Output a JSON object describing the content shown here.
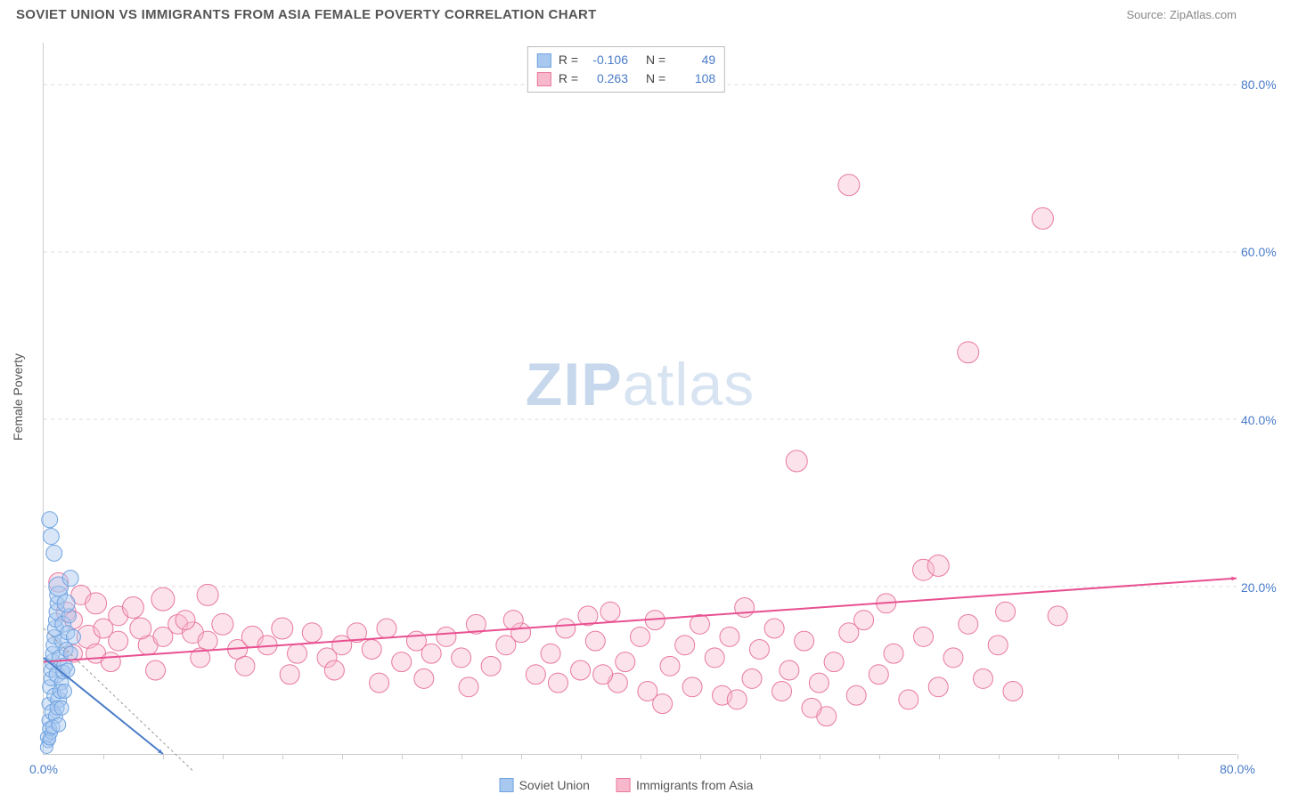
{
  "header": {
    "title": "SOVIET UNION VS IMMIGRANTS FROM ASIA FEMALE POVERTY CORRELATION CHART",
    "source": "Source: ZipAtlas.com"
  },
  "ylabel": "Female Poverty",
  "watermark": {
    "bold": "ZIP",
    "light": "atlas"
  },
  "chart": {
    "type": "scatter",
    "xlim": [
      0,
      80
    ],
    "ylim": [
      0,
      85
    ],
    "yticks": [
      {
        "v": 20,
        "label": "20.0%"
      },
      {
        "v": 40,
        "label": "40.0%"
      },
      {
        "v": 60,
        "label": "60.0%"
      },
      {
        "v": 80,
        "label": "80.0%"
      }
    ],
    "xticks_minor": [
      4,
      8,
      12,
      16,
      20,
      24,
      28,
      32,
      36,
      40,
      44,
      48,
      52,
      56,
      60,
      64,
      68,
      72,
      76,
      80
    ],
    "xtick_labels": [
      {
        "v": 0,
        "label": "0.0%"
      },
      {
        "v": 80,
        "label": "80.0%"
      }
    ],
    "background_color": "#ffffff",
    "grid_color": "#dddddd",
    "axis_color": "#cccccc",
    "tick_label_color": "#4a7cc9",
    "marker_radius_base": 9,
    "line_width": 2
  },
  "series": {
    "soviet": {
      "label": "Soviet Union",
      "fill": "#a8c8f0",
      "fill_opacity": 0.45,
      "stroke": "#6fa3e0",
      "trend_color": "#4a7cc9",
      "trend": {
        "x1": 0,
        "y1": 11.5,
        "x2": 8,
        "y2": 0
      },
      "R": "-0.106",
      "N": "49",
      "points": [
        [
          0.2,
          2.0,
          7
        ],
        [
          0.3,
          4.0,
          7
        ],
        [
          0.3,
          6.0,
          7
        ],
        [
          0.4,
          8.0,
          8
        ],
        [
          0.5,
          9.0,
          8
        ],
        [
          0.5,
          10.0,
          8
        ],
        [
          0.6,
          11.0,
          9
        ],
        [
          0.6,
          12.0,
          8
        ],
        [
          0.7,
          13.0,
          9
        ],
        [
          0.7,
          14.0,
          8
        ],
        [
          0.8,
          15.0,
          9
        ],
        [
          0.8,
          16.0,
          8
        ],
        [
          0.9,
          17.0,
          9
        ],
        [
          0.9,
          18.0,
          8
        ],
        [
          1.0,
          19.0,
          10
        ],
        [
          1.0,
          20.0,
          11
        ],
        [
          0.4,
          3.0,
          8
        ],
        [
          0.6,
          5.0,
          9
        ],
        [
          0.7,
          7.0,
          8
        ],
        [
          0.9,
          9.5,
          9
        ],
        [
          1.1,
          11.5,
          9
        ],
        [
          1.2,
          13.5,
          8
        ],
        [
          1.3,
          15.5,
          9
        ],
        [
          0.3,
          1.5,
          7
        ],
        [
          0.5,
          2.5,
          7
        ],
        [
          0.8,
          4.5,
          8
        ],
        [
          1.0,
          6.5,
          9
        ],
        [
          1.2,
          8.5,
          8
        ],
        [
          1.4,
          10.5,
          9
        ],
        [
          1.5,
          12.5,
          8
        ],
        [
          1.6,
          14.5,
          8
        ],
        [
          1.7,
          16.5,
          8
        ],
        [
          0.2,
          0.8,
          7
        ],
        [
          0.4,
          1.8,
          7
        ],
        [
          0.6,
          3.2,
          8
        ],
        [
          0.9,
          5.5,
          8
        ],
        [
          1.1,
          7.5,
          8
        ],
        [
          1.3,
          9.8,
          8
        ],
        [
          1.5,
          18.0,
          10
        ],
        [
          1.8,
          21.0,
          9
        ],
        [
          0.7,
          24.0,
          9
        ],
        [
          0.5,
          26.0,
          9
        ],
        [
          0.4,
          28.0,
          9
        ],
        [
          1.0,
          3.5,
          8
        ],
        [
          1.2,
          5.5,
          8
        ],
        [
          1.4,
          7.5,
          8
        ],
        [
          1.6,
          10.0,
          8
        ],
        [
          1.8,
          12.0,
          8
        ],
        [
          2.0,
          14.0,
          8
        ]
      ]
    },
    "asia": {
      "label": "Immigrants from Asia",
      "fill": "#f8b8cc",
      "fill_opacity": 0.4,
      "stroke": "#e878a0",
      "trend_color": "#e85090",
      "trend": {
        "x1": 0,
        "y1": 11.0,
        "x2": 80,
        "y2": 21.0
      },
      "R": "0.263",
      "N": "108",
      "points": [
        [
          1.5,
          17.0,
          11
        ],
        [
          2.0,
          16.0,
          10
        ],
        [
          2.5,
          19.0,
          11
        ],
        [
          3.0,
          14.0,
          13
        ],
        [
          3.5,
          18.0,
          12
        ],
        [
          4.0,
          15.0,
          11
        ],
        [
          5.0,
          16.5,
          11
        ],
        [
          6.0,
          17.5,
          12
        ],
        [
          7.0,
          13.0,
          11
        ],
        [
          8.0,
          18.5,
          13
        ],
        [
          9.0,
          15.5,
          11
        ],
        [
          10.0,
          14.5,
          12
        ],
        [
          11.0,
          19.0,
          12
        ],
        [
          3.5,
          12.0,
          11
        ],
        [
          5.0,
          13.5,
          11
        ],
        [
          6.5,
          15.0,
          12
        ],
        [
          8.0,
          14.0,
          11
        ],
        [
          9.5,
          16.0,
          11
        ],
        [
          11.0,
          13.5,
          11
        ],
        [
          12.0,
          15.5,
          12
        ],
        [
          13.0,
          12.5,
          11
        ],
        [
          14.0,
          14.0,
          12
        ],
        [
          15.0,
          13.0,
          11
        ],
        [
          16.0,
          15.0,
          12
        ],
        [
          17.0,
          12.0,
          11
        ],
        [
          18.0,
          14.5,
          11
        ],
        [
          19.0,
          11.5,
          11
        ],
        [
          20.0,
          13.0,
          11
        ],
        [
          21.0,
          14.5,
          11
        ],
        [
          22.0,
          12.5,
          11
        ],
        [
          23.0,
          15.0,
          11
        ],
        [
          24.0,
          11.0,
          11
        ],
        [
          25.0,
          13.5,
          11
        ],
        [
          26.0,
          12.0,
          11
        ],
        [
          27.0,
          14.0,
          11
        ],
        [
          28.0,
          11.5,
          11
        ],
        [
          29.0,
          15.5,
          11
        ],
        [
          30.0,
          10.5,
          11
        ],
        [
          31.0,
          13.0,
          11
        ],
        [
          32.0,
          14.5,
          11
        ],
        [
          33.0,
          9.5,
          11
        ],
        [
          34.0,
          12.0,
          11
        ],
        [
          35.0,
          15.0,
          11
        ],
        [
          36.0,
          10.0,
          11
        ],
        [
          36.5,
          16.5,
          11
        ],
        [
          37.0,
          13.5,
          11
        ],
        [
          38.0,
          17.0,
          11
        ],
        [
          38.5,
          8.5,
          11
        ],
        [
          39.0,
          11.0,
          11
        ],
        [
          40.0,
          14.0,
          11
        ],
        [
          40.5,
          7.5,
          11
        ],
        [
          41.0,
          16.0,
          11
        ],
        [
          42.0,
          10.5,
          11
        ],
        [
          43.0,
          13.0,
          11
        ],
        [
          43.5,
          8.0,
          11
        ],
        [
          44.0,
          15.5,
          11
        ],
        [
          45.0,
          11.5,
          11
        ],
        [
          45.5,
          7.0,
          11
        ],
        [
          46.0,
          14.0,
          11
        ],
        [
          47.0,
          17.5,
          11
        ],
        [
          47.5,
          9.0,
          11
        ],
        [
          48.0,
          12.5,
          11
        ],
        [
          49.0,
          15.0,
          11
        ],
        [
          49.5,
          7.5,
          11
        ],
        [
          50.0,
          10.0,
          11
        ],
        [
          50.5,
          35.0,
          12
        ],
        [
          51.0,
          13.5,
          11
        ],
        [
          52.0,
          8.5,
          11
        ],
        [
          53.0,
          11.0,
          11
        ],
        [
          54.0,
          14.5,
          11
        ],
        [
          54.0,
          68.0,
          12
        ],
        [
          54.5,
          7.0,
          11
        ],
        [
          55.0,
          16.0,
          11
        ],
        [
          56.0,
          9.5,
          11
        ],
        [
          56.5,
          18.0,
          11
        ],
        [
          57.0,
          12.0,
          11
        ],
        [
          58.0,
          6.5,
          11
        ],
        [
          59.0,
          14.0,
          11
        ],
        [
          59.0,
          22.0,
          12
        ],
        [
          60.0,
          8.0,
          11
        ],
        [
          60.0,
          22.5,
          12
        ],
        [
          61.0,
          11.5,
          11
        ],
        [
          62.0,
          48.0,
          12
        ],
        [
          62.0,
          15.5,
          11
        ],
        [
          63.0,
          9.0,
          11
        ],
        [
          64.0,
          13.0,
          11
        ],
        [
          64.5,
          17.0,
          11
        ],
        [
          65.0,
          7.5,
          11
        ],
        [
          67.0,
          64.0,
          12
        ],
        [
          68.0,
          16.5,
          11
        ],
        [
          52.5,
          4.5,
          11
        ],
        [
          1.0,
          20.5,
          11
        ],
        [
          2.0,
          12.0,
          10
        ],
        [
          4.5,
          11.0,
          11
        ],
        [
          7.5,
          10.0,
          11
        ],
        [
          10.5,
          11.5,
          11
        ],
        [
          13.5,
          10.5,
          11
        ],
        [
          16.5,
          9.5,
          11
        ],
        [
          19.5,
          10.0,
          11
        ],
        [
          22.5,
          8.5,
          11
        ],
        [
          25.5,
          9.0,
          11
        ],
        [
          28.5,
          8.0,
          11
        ],
        [
          31.5,
          16.0,
          11
        ],
        [
          34.5,
          8.5,
          11
        ],
        [
          37.5,
          9.5,
          11
        ],
        [
          41.5,
          6.0,
          11
        ],
        [
          46.5,
          6.5,
          11
        ],
        [
          51.5,
          5.5,
          11
        ]
      ]
    }
  },
  "legend_top": [
    {
      "swatch_fill": "#a8c8f0",
      "swatch_stroke": "#6fa3e0",
      "r_prefix": "R = ",
      "r_val": "-0.106",
      "n_prefix": "N = ",
      "n_val": "49"
    },
    {
      "swatch_fill": "#f8b8cc",
      "swatch_stroke": "#e878a0",
      "r_prefix": "R = ",
      "r_val": "0.263",
      "n_prefix": "N = ",
      "n_val": "108"
    }
  ],
  "legend_bottom": [
    {
      "swatch_fill": "#a8c8f0",
      "swatch_stroke": "#6fa3e0",
      "label": "Soviet Union"
    },
    {
      "swatch_fill": "#f8b8cc",
      "swatch_stroke": "#e878a0",
      "label": "Immigrants from Asia"
    }
  ]
}
